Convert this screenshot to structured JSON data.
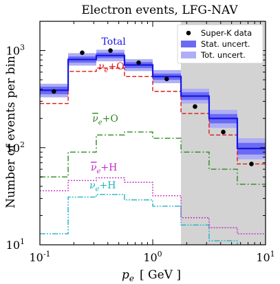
{
  "chart_data": {
    "type": "step-line",
    "title": "Electron events, LFG-NAV",
    "xlabel": "p_e",
    "xlabel_unit": "[ GeV ]",
    "ylabel": "Number of events per bin",
    "xscale": "log",
    "yscale": "log",
    "xlim": [
      0.1,
      10
    ],
    "ylim": [
      10,
      2000
    ],
    "xticks": [
      {
        "value": 0.1,
        "base": "10",
        "exp": "-1"
      },
      {
        "value": 1,
        "base": "10",
        "exp": "0"
      },
      {
        "value": 10,
        "base": "10",
        "exp": "1"
      }
    ],
    "yticks": [
      {
        "value": 10,
        "base": "10",
        "exp": "1"
      },
      {
        "value": 100,
        "base": "10",
        "exp": "2"
      },
      {
        "value": 1000,
        "base": "10",
        "exp": "3"
      }
    ],
    "shaded_region": {
      "x_from": 1.78,
      "x_to": 10,
      "color": "#d3d3d3"
    },
    "bin_edges": [
      0.1,
      0.178,
      0.316,
      0.562,
      1.0,
      1.78,
      3.16,
      5.62,
      10
    ],
    "series": [
      {
        "name": "Total",
        "label_base": "Total",
        "label_sub": "",
        "label_tail": "",
        "bar": false,
        "color": "#1515e6",
        "dash": "",
        "width": 2.2,
        "values": [
          390,
          810,
          890,
          710,
          540,
          340,
          200,
          98
        ]
      },
      {
        "name": "ν_e+O",
        "label_base": "ν",
        "label_sub": "e",
        "label_tail": "+O",
        "bar": false,
        "color": "#e01414",
        "dash": "6,3",
        "width": 1.4,
        "values": [
          285,
          610,
          660,
          540,
          380,
          225,
          135,
          68
        ]
      },
      {
        "name": "ν̄_e+O",
        "label_base": "ν",
        "label_sub": "e",
        "label_tail": "+O",
        "bar": true,
        "color": "#2a8a1e",
        "dash": "8,3,2,3",
        "width": 1.4,
        "values": [
          50,
          90,
          135,
          145,
          125,
          90,
          60,
          42
        ]
      },
      {
        "name": "ν̄_e+H",
        "label_base": "ν",
        "label_sub": "e",
        "label_tail": "+H",
        "bar": true,
        "color": "#c42ac4",
        "dash": "2,2",
        "width": 1.4,
        "values": [
          36,
          46,
          49,
          44,
          32,
          19,
          15,
          13
        ]
      },
      {
        "name": "ν_e+H",
        "label_base": "ν",
        "label_sub": "e",
        "label_tail": "+H",
        "bar": false,
        "color": "#1fb3c2",
        "dash": "8,2,2,2,2,2",
        "width": 1.4,
        "values": [
          13,
          31,
          33,
          29,
          25,
          16,
          11,
          8.5
        ]
      }
    ],
    "series_labels_at": [
      {
        "x": 0.45,
        "y": 1150
      },
      {
        "x": 0.43,
        "y": 640
      },
      {
        "x": 0.38,
        "y": 185
      },
      {
        "x": 0.37,
        "y": 58
      },
      {
        "x": 0.36,
        "y": 38
      }
    ],
    "stat_band": {
      "color": "#6b6bf2",
      "lower": [
        355,
        750,
        835,
        660,
        500,
        310,
        178,
        85
      ],
      "upper": [
        425,
        870,
        950,
        760,
        580,
        372,
        222,
        112
      ]
    },
    "tot_band": {
      "color": "#aeaef6",
      "lower": [
        330,
        700,
        775,
        615,
        462,
        285,
        160,
        76
      ],
      "upper": [
        455,
        940,
        1020,
        815,
        630,
        405,
        245,
        125
      ]
    },
    "data_points": {
      "name": "Super-K data",
      "x": [
        0.133,
        0.237,
        0.422,
        0.75,
        1.33,
        2.37,
        4.22,
        7.5
      ],
      "y": [
        380,
        950,
        1000,
        750,
        510,
        265,
        145,
        68
      ]
    },
    "legend": {
      "placement": "top-right",
      "entries": [
        "Super-K data",
        "Stat. uncert.",
        "Tot. uncert."
      ]
    }
  }
}
